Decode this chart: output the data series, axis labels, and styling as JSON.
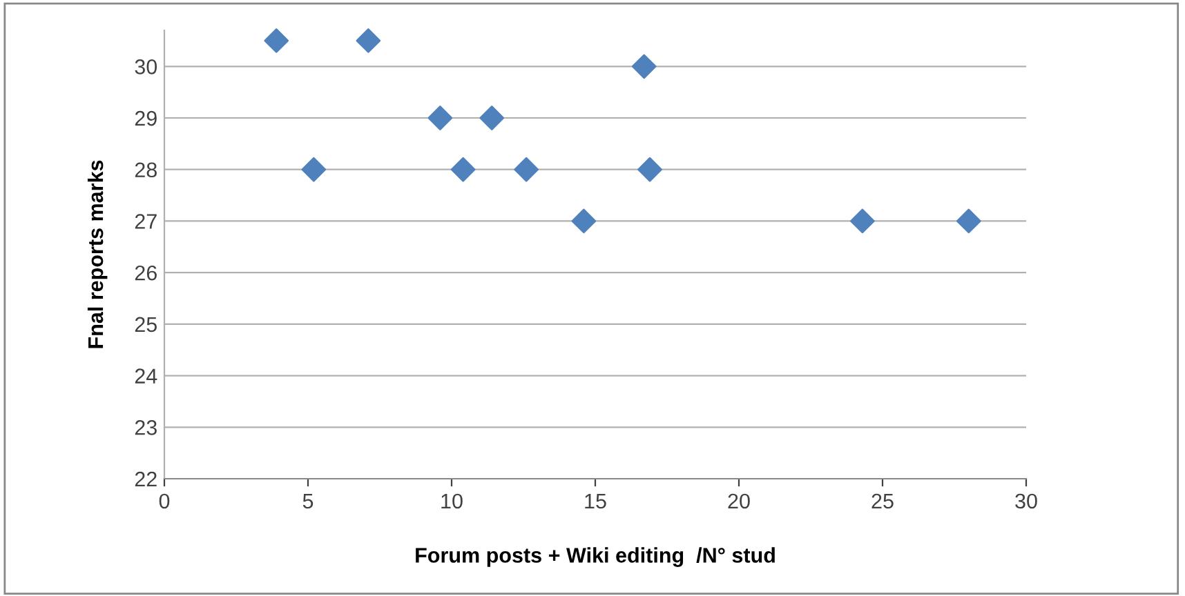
{
  "chart_data": {
    "type": "scatter",
    "xlabel": "Forum posts + Wiki editing  /N° stud",
    "ylabel": "Fnal reports marks",
    "x": [
      3.9,
      7.1,
      16.7,
      9.6,
      11.4,
      5.2,
      10.4,
      12.6,
      16.9,
      14.6,
      24.3,
      28.0
    ],
    "series": [
      {
        "color": "#4f81bd",
        "values": [
          30.5,
          30.5,
          30,
          29,
          29,
          28,
          28,
          28,
          28,
          27,
          27,
          27
        ]
      }
    ],
    "marker": "diamond",
    "grid": "y",
    "xlim": [
      0,
      30
    ],
    "xticks": [
      0,
      5,
      10,
      15,
      20,
      25,
      30
    ],
    "ylim": [
      22,
      30.7
    ],
    "yticks": [
      22,
      23,
      24,
      25,
      26,
      27,
      28,
      29,
      30
    ]
  }
}
